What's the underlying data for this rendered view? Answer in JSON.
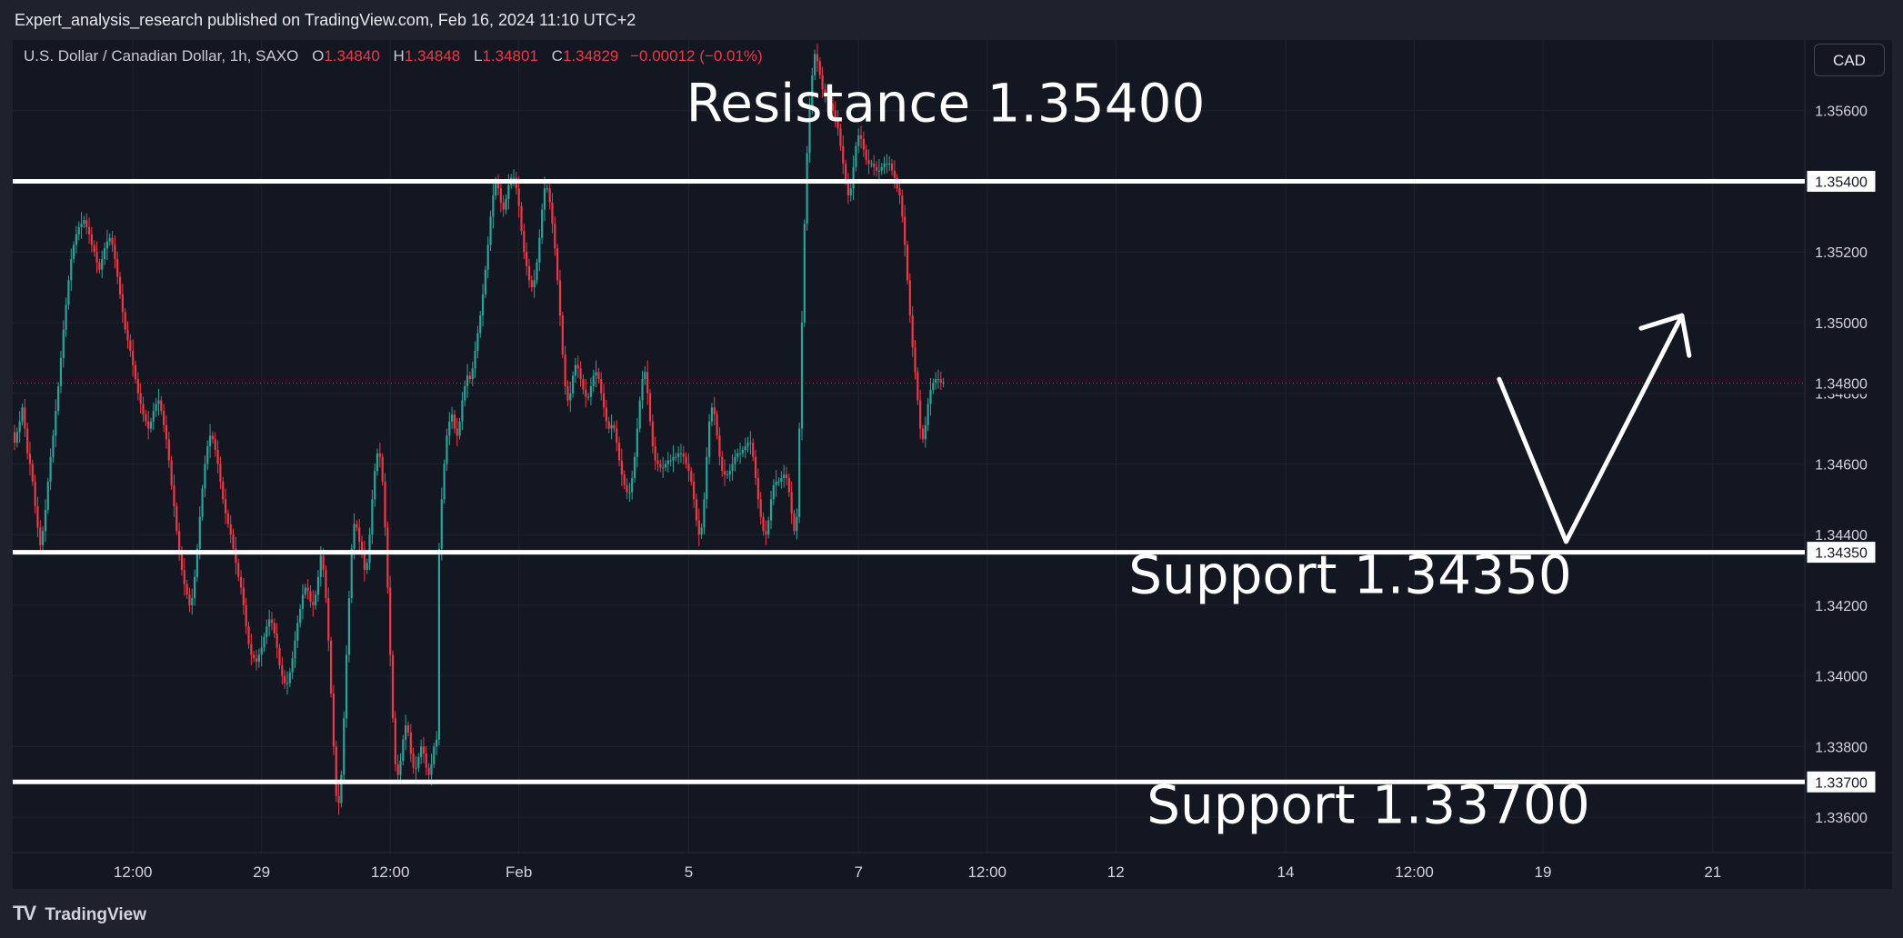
{
  "header": {
    "published_text": "Expert_analysis_research published on TradingView.com, Feb 16, 2024 11:10 UTC+2"
  },
  "legend": {
    "symbol": "U.S. Dollar / Canadian Dollar, 1h, SAXO",
    "open_label": "O",
    "open": "1.34840",
    "high_label": "H",
    "high": "1.34848",
    "low_label": "L",
    "low": "1.34801",
    "close_label": "C",
    "close": "1.34829",
    "change": "−0.00012 (−0.01%)"
  },
  "currency_button": "CAD",
  "footer": {
    "logo_text": "TradingView",
    "logo_icon": "tradingview-logo-icon"
  },
  "colors": {
    "up": "#26a69a",
    "down": "#f23645",
    "background": "#131722",
    "level_line": "#ffffff"
  },
  "chart_data": {
    "type": "candlestick",
    "symbol": "USDCAD",
    "timeframe": "1h",
    "ylim": [
      1.335,
      1.358
    ],
    "y_ticks": [
      "1.33600",
      "1.33800",
      "1.34000",
      "1.34200",
      "1.34400",
      "1.34600",
      "1.34800",
      "1.35000",
      "1.35200",
      "1.35600"
    ],
    "x_ticks": [
      {
        "label": "12:00",
        "bar": 46
      },
      {
        "label": "29",
        "bar": 96
      },
      {
        "label": "12:00",
        "bar": 146
      },
      {
        "label": "Feb",
        "bar": 196
      },
      {
        "label": "5",
        "bar": 262
      },
      {
        "label": "7",
        "bar": 328
      },
      {
        "label": "12:00",
        "bar": 378
      },
      {
        "label": "12",
        "bar": 428
      },
      {
        "label": "14",
        "bar": 494
      },
      {
        "label": "12:00",
        "bar": 544
      },
      {
        "label": "19",
        "bar": 594
      },
      {
        "label": "21",
        "bar": 660
      }
    ],
    "last_price": 1.34829,
    "levels": [
      {
        "name": "Resistance",
        "value": 1.354,
        "label": "Resistance 1.35400",
        "tag": "1.35400"
      },
      {
        "name": "Support",
        "value": 1.3435,
        "label": "Support 1.34350",
        "tag": "1.34350"
      },
      {
        "name": "Support",
        "value": 1.337,
        "label": "Support 1.33700",
        "tag": "1.33700"
      }
    ],
    "projection": [
      {
        "bar": 577,
        "price": 1.3484
      },
      {
        "bar": 603,
        "price": 1.3438
      },
      {
        "bar": 648,
        "price": 1.3502
      },
      {
        "bar": 652,
        "price": 1.349
      }
    ],
    "closes": [
      1.3466,
      1.3469,
      1.3472,
      1.3476,
      1.347,
      1.3463,
      1.346,
      1.3455,
      1.3448,
      1.3442,
      1.3437,
      1.3441,
      1.3447,
      1.3455,
      1.3462,
      1.3468,
      1.3475,
      1.3482,
      1.349,
      1.3498,
      1.3505,
      1.3512,
      1.3518,
      1.3522,
      1.3525,
      1.3527,
      1.3528,
      1.3529,
      1.3527,
      1.3525,
      1.3522,
      1.352,
      1.3517,
      1.3515,
      1.3518,
      1.3521,
      1.3523,
      1.3524,
      1.3522,
      1.3518,
      1.3513,
      1.3508,
      1.3503,
      1.3498,
      1.3495,
      1.3492,
      1.3488,
      1.3484,
      1.348,
      1.3477,
      1.3474,
      1.3472,
      1.347,
      1.3472,
      1.3475,
      1.3477,
      1.3478,
      1.3475,
      1.3471,
      1.3467,
      1.3461,
      1.3454,
      1.3448,
      1.3441,
      1.3435,
      1.343,
      1.3426,
      1.3423,
      1.342,
      1.3422,
      1.3428,
      1.3436,
      1.3445,
      1.3453,
      1.346,
      1.3465,
      1.3468,
      1.3467,
      1.3464,
      1.346,
      1.3455,
      1.345,
      1.3446,
      1.3443,
      1.344,
      1.3436,
      1.3432,
      1.3428,
      1.3425,
      1.342,
      1.3414,
      1.3409,
      1.3406,
      1.3405,
      1.3404,
      1.3406,
      1.3408,
      1.3411,
      1.3414,
      1.3416,
      1.3415,
      1.3412,
      1.3408,
      1.3403,
      1.34,
      1.3398,
      1.3398,
      1.3401,
      1.3405,
      1.341,
      1.3415,
      1.3419,
      1.3423,
      1.3425,
      1.3424,
      1.3421,
      1.342,
      1.3423,
      1.3428,
      1.3434,
      1.343,
      1.3422,
      1.341,
      1.3395,
      1.338,
      1.3366,
      1.3364,
      1.3372,
      1.3388,
      1.3406,
      1.3422,
      1.3436,
      1.3443,
      1.3442,
      1.3438,
      1.3435,
      1.343,
      1.3432,
      1.344,
      1.345,
      1.3458,
      1.3463,
      1.3462,
      1.3455,
      1.3442,
      1.3425,
      1.3406,
      1.3388,
      1.3375,
      1.3372,
      1.3376,
      1.3382,
      1.3386,
      1.3384,
      1.3378,
      1.3374,
      1.3374,
      1.3377,
      1.338,
      1.3378,
      1.3374,
      1.3372,
      1.3375,
      1.338,
      1.3382,
      1.3436,
      1.345,
      1.346,
      1.3468,
      1.3472,
      1.3474,
      1.347,
      1.3468,
      1.3472,
      1.3478,
      1.3482,
      1.3485,
      1.3484,
      1.3487,
      1.3492,
      1.3497,
      1.3502,
      1.3508,
      1.3515,
      1.3522,
      1.353,
      1.3536,
      1.354,
      1.3538,
      1.3534,
      1.3532,
      1.3535,
      1.3539,
      1.3541,
      1.3541,
      1.3538,
      1.3533,
      1.3526,
      1.352,
      1.3516,
      1.3512,
      1.351,
      1.3512,
      1.3517,
      1.3524,
      1.3532,
      1.3538,
      1.3538,
      1.3534,
      1.3528,
      1.3521,
      1.3512,
      1.3502,
      1.3491,
      1.3482,
      1.3478,
      1.348,
      1.3485,
      1.3488,
      1.3487,
      1.3484,
      1.3481,
      1.3479,
      1.3479,
      1.3482,
      1.3485,
      1.3486,
      1.3484,
      1.348,
      1.3476,
      1.3472,
      1.347,
      1.3471,
      1.347,
      1.3466,
      1.3461,
      1.3457,
      1.3454,
      1.3452,
      1.3452,
      1.3456,
      1.3462,
      1.347,
      1.3478,
      1.3484,
      1.3486,
      1.348,
      1.3472,
      1.3465,
      1.3461,
      1.346,
      1.3459,
      1.3459,
      1.346,
      1.3461,
      1.3461,
      1.3462,
      1.3462,
      1.3463,
      1.3463,
      1.3462,
      1.346,
      1.3458,
      1.3455,
      1.345,
      1.3444,
      1.344,
      1.3442,
      1.345,
      1.3462,
      1.3472,
      1.3476,
      1.3474,
      1.3468,
      1.3462,
      1.3458,
      1.3457,
      1.3457,
      1.3458,
      1.346,
      1.3462,
      1.3463,
      1.3463,
      1.3464,
      1.3465,
      1.3466,
      1.3466,
      1.3462,
      1.3456,
      1.345,
      1.3445,
      1.3441,
      1.344,
      1.3444,
      1.345,
      1.3454,
      1.3455,
      1.3455,
      1.3456,
      1.3457,
      1.3456,
      1.3452,
      1.3446,
      1.3441,
      1.3445,
      1.347,
      1.35,
      1.3528,
      1.3548,
      1.3561,
      1.357,
      1.3576,
      1.3574,
      1.357,
      1.3566,
      1.3564,
      1.3563,
      1.3562,
      1.356,
      1.3558,
      1.3555,
      1.355,
      1.3545,
      1.354,
      1.3536,
      1.3538,
      1.3544,
      1.355,
      1.3553,
      1.3552,
      1.3549,
      1.3546,
      1.3545,
      1.3545,
      1.3544,
      1.3543,
      1.3543,
      1.3544,
      1.3545,
      1.3545,
      1.3545,
      1.3543,
      1.3541,
      1.3538,
      1.3536,
      1.353,
      1.3522,
      1.3512,
      1.3502,
      1.3493,
      1.3486,
      1.3478,
      1.347,
      1.3467,
      1.3471,
      1.3477,
      1.3481,
      1.3483,
      1.3484,
      1.3484,
      1.3483,
      1.3483
    ]
  }
}
